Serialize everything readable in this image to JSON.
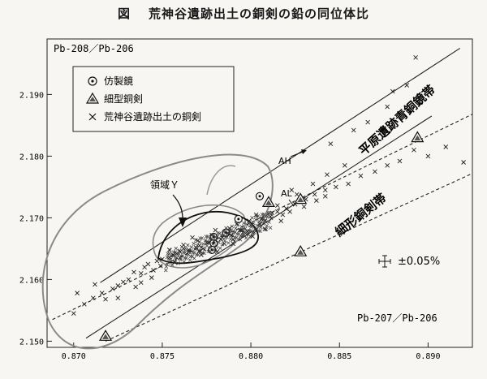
{
  "figure": {
    "label": "図",
    "title": "荒神谷遺跡出土の銅剣の鉛の同位体比"
  },
  "chart_data": {
    "type": "scatter",
    "ylabel": "Pb-208／Pb-206",
    "xlabel": "Pb-207／Pb-206",
    "xlim": [
      0.8685,
      0.8925
    ],
    "ylim": [
      2.149,
      2.199
    ],
    "x_ticks": [
      "0.870",
      "0.875",
      "0.880",
      "0.885",
      "0.890"
    ],
    "y_ticks": [
      "2.190",
      "2.180",
      "2.170",
      "2.160",
      "2.150"
    ],
    "x_tick_values": [
      0.87,
      0.875,
      0.88,
      0.885,
      0.89
    ],
    "y_tick_values": [
      2.19,
      2.18,
      2.17,
      2.16,
      2.15
    ],
    "legend": {
      "position": "top-left",
      "items": [
        {
          "marker": "circle-dot",
          "label": "仿製鏡"
        },
        {
          "marker": "triangle",
          "label": "細型銅剣"
        },
        {
          "marker": "cross",
          "label": "荒神谷遺跡出土の銅剣"
        }
      ]
    },
    "annotations": {
      "region": "領域Ｙ",
      "ah": "AH",
      "al": "AL",
      "error": "±0.05%",
      "band1": "平原遺跡青銅鏡帯",
      "band2": "細形銅剣帯"
    },
    "bands": {
      "mirror_band": {
        "upper": [
          [
            0.8715,
            2.1595
          ],
          [
            0.8918,
            2.1975
          ]
        ],
        "lower": [
          [
            0.8707,
            2.1505
          ],
          [
            0.8902,
            2.1865
          ]
        ]
      },
      "dagger_band": {
        "upper": [
          [
            0.8688,
            2.1535
          ],
          [
            0.8925,
            2.1868
          ]
        ],
        "lower": [
          [
            0.8718,
            2.15
          ],
          [
            0.8925,
            2.1772
          ]
        ]
      }
    },
    "series": [
      {
        "name": "仿製鏡",
        "marker": "circle-dot",
        "points": [
          [
            0.8805,
            2.1735
          ],
          [
            0.8793,
            2.1698
          ],
          [
            0.8786,
            2.1676
          ],
          [
            0.8779,
            2.1669
          ],
          [
            0.8779,
            2.1659
          ],
          [
            0.8778,
            2.1648
          ]
        ]
      },
      {
        "name": "細型銅剣",
        "marker": "triangle",
        "points": [
          [
            0.881,
            2.1725
          ],
          [
            0.8828,
            2.173
          ],
          [
            0.8828,
            2.1645
          ],
          [
            0.8894,
            2.183
          ],
          [
            0.8718,
            2.1508
          ]
        ]
      },
      {
        "name": "荒神谷遺跡出土の銅剣",
        "marker": "cross",
        "points": [
          [
            0.8725,
            2.159
          ],
          [
            0.8731,
            2.16
          ],
          [
            0.8738,
            2.161
          ],
          [
            0.8742,
            2.1625
          ],
          [
            0.875,
            2.1633
          ],
          [
            0.8756,
            2.164
          ],
          [
            0.876,
            2.1645
          ],
          [
            0.8765,
            2.1648
          ],
          [
            0.8771,
            2.1655
          ],
          [
            0.8775,
            2.166
          ],
          [
            0.8779,
            2.1662
          ],
          [
            0.8784,
            2.1668
          ],
          [
            0.8789,
            2.1672
          ],
          [
            0.8794,
            2.168
          ],
          [
            0.88,
            2.1688
          ],
          [
            0.8805,
            2.169
          ],
          [
            0.8811,
            2.1702
          ],
          [
            0.8815,
            2.171
          ],
          [
            0.882,
            2.1715
          ],
          [
            0.8825,
            2.1722
          ],
          [
            0.8831,
            2.173
          ],
          [
            0.8836,
            2.1738
          ],
          [
            0.8842,
            2.1745
          ],
          [
            0.8848,
            2.175
          ],
          [
            0.8855,
            2.1755
          ],
          [
            0.8862,
            2.1768
          ],
          [
            0.887,
            2.1775
          ],
          [
            0.8877,
            2.1785
          ],
          [
            0.8884,
            2.1792
          ],
          [
            0.8892,
            2.181
          ],
          [
            0.89,
            2.18
          ],
          [
            0.891,
            2.1815
          ],
          [
            0.892,
            2.179
          ],
          [
            0.8845,
            2.182
          ],
          [
            0.8858,
            2.1842
          ],
          [
            0.8866,
            2.1855
          ],
          [
            0.8877,
            2.188
          ],
          [
            0.8888,
            2.1915
          ],
          [
            0.8893,
            2.196
          ],
          [
            0.888,
            2.1905
          ],
          [
            0.8853,
            2.1785
          ],
          [
            0.8843,
            2.177
          ],
          [
            0.8835,
            2.1755
          ],
          [
            0.8823,
            2.1745
          ],
          [
            0.8826,
            2.1738
          ],
          [
            0.883,
            2.1718
          ],
          [
            0.8818,
            2.1705
          ],
          [
            0.8812,
            2.1708
          ],
          [
            0.8808,
            2.1695
          ],
          [
            0.8799,
            2.1695
          ],
          [
            0.8795,
            2.168
          ],
          [
            0.879,
            2.1665
          ],
          [
            0.8787,
            2.1675
          ],
          [
            0.8783,
            2.1665
          ],
          [
            0.8776,
            2.166
          ],
          [
            0.8773,
            2.165
          ],
          [
            0.8769,
            2.1652
          ],
          [
            0.8765,
            2.1645
          ],
          [
            0.8762,
            2.165
          ],
          [
            0.8758,
            2.1642
          ],
          [
            0.8754,
            2.1636
          ],
          [
            0.8747,
            2.163
          ],
          [
            0.874,
            2.162
          ],
          [
            0.8734,
            2.1612
          ],
          [
            0.8728,
            2.1596
          ],
          [
            0.8722,
            2.1585
          ],
          [
            0.8716,
            2.1578
          ],
          [
            0.8711,
            2.157
          ],
          [
            0.8706,
            2.156
          ],
          [
            0.87,
            2.1545
          ],
          [
            0.8718,
            2.1568
          ],
          [
            0.8735,
            2.1588
          ],
          [
            0.8745,
            2.1615
          ],
          [
            0.8767,
            2.1668
          ],
          [
            0.878,
            2.168
          ],
          [
            0.8792,
            2.169
          ],
          [
            0.8803,
            2.1705
          ],
          [
            0.8815,
            2.172
          ],
          [
            0.8822,
            2.171
          ],
          [
            0.8837,
            2.1728
          ],
          [
            0.8842,
            2.1735
          ],
          [
            0.8808,
            2.1682
          ],
          [
            0.8796,
            2.1672
          ],
          [
            0.8785,
            2.1658
          ],
          [
            0.8772,
            2.164
          ],
          [
            0.876,
            2.1635
          ],
          [
            0.8749,
            2.1622
          ],
          [
            0.8754,
            2.1648
          ],
          [
            0.877,
            2.1663
          ],
          [
            0.8778,
            2.1672
          ],
          [
            0.8788,
            2.1683
          ],
          [
            0.8798,
            2.1678
          ],
          [
            0.8806,
            2.1698
          ],
          [
            0.8817,
            2.1695
          ],
          [
            0.8781,
            2.1645
          ],
          [
            0.8771,
            2.1646
          ],
          [
            0.8762,
            2.1656
          ],
          [
            0.8757,
            2.1628
          ],
          [
            0.8744,
            2.1603
          ],
          [
            0.8712,
            2.1592
          ],
          [
            0.8702,
            2.1578
          ],
          [
            0.8725,
            2.157
          ],
          [
            0.8738,
            2.1595
          ],
          [
            0.879,
            2.1658
          ],
          [
            0.8801,
            2.167
          ]
        ]
      }
    ]
  }
}
